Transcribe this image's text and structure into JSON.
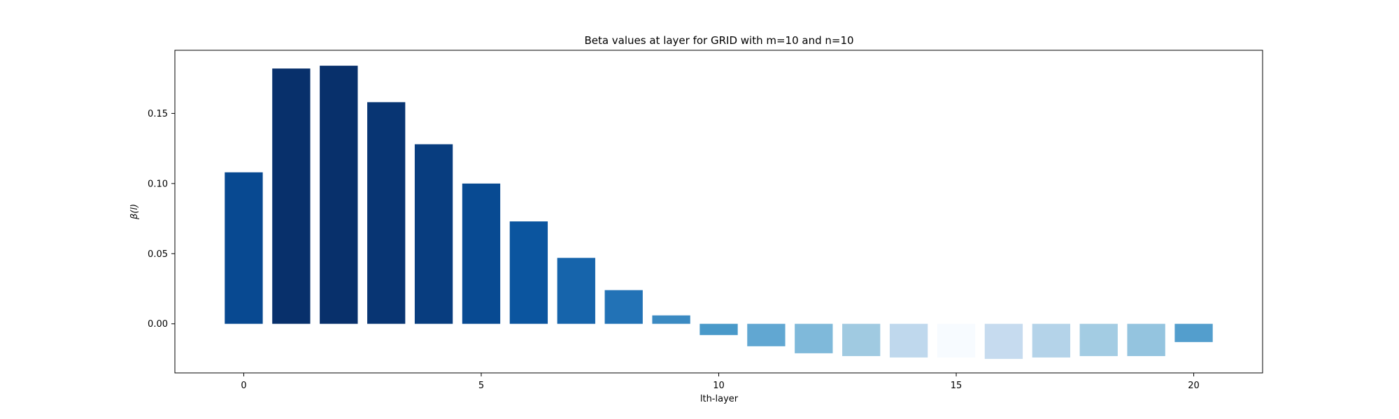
{
  "chart_data": {
    "type": "bar",
    "title": "Beta values at layer for GRID with m=10 and n=10",
    "xlabel": "lth-layer",
    "ylabel": "β(l)",
    "x": [
      0,
      1,
      2,
      3,
      4,
      5,
      6,
      7,
      8,
      9,
      10,
      11,
      12,
      13,
      14,
      15,
      16,
      17,
      18,
      19,
      20
    ],
    "values": [
      0.108,
      0.182,
      0.184,
      0.158,
      0.128,
      0.1,
      0.073,
      0.047,
      0.024,
      0.006,
      -0.008,
      -0.016,
      -0.021,
      -0.023,
      -0.024,
      -0.024,
      -0.025,
      -0.024,
      -0.023,
      -0.023,
      -0.013
    ],
    "colors": [
      "#084991",
      "#08306b",
      "#08306b",
      "#083573",
      "#083d7f",
      "#084a92",
      "#0b559f",
      "#1664ab",
      "#2272b6",
      "#3b8ac2",
      "#4999c9",
      "#61a7d2",
      "#7fb9da",
      "#a0cae1",
      "#bfd8ed",
      "#f7fbff",
      "#c6dbef",
      "#b4d3e9",
      "#a3cce3",
      "#94c4df",
      "#539ecd"
    ],
    "xlim": [
      -1.45,
      21.45
    ],
    "ylim": [
      -0.035,
      0.195
    ],
    "xticks": [
      0,
      5,
      10,
      15,
      20
    ],
    "yticks": [
      0.0,
      0.05,
      0.1,
      0.15
    ],
    "ytick_labels": [
      "0.00",
      "0.05",
      "0.10",
      "0.15"
    ],
    "grid": false,
    "bar_width": 0.8
  }
}
